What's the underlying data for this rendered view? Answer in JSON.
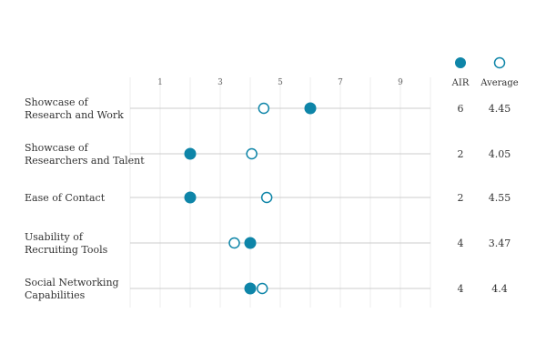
{
  "chart_data": {
    "type": "dot-plot",
    "x_ticks": [
      1,
      3,
      5,
      7,
      9
    ],
    "xlim": [
      0,
      10
    ],
    "grid": true,
    "legend_position": "top-right",
    "categories": [
      [
        "Showcase of",
        "Research and Work"
      ],
      [
        "Showcase of",
        "Researchers and Talent"
      ],
      [
        "Ease of Contact"
      ],
      [
        "Usability of",
        "Recruiting Tools"
      ],
      [
        "Social Networking",
        "Capabilities"
      ]
    ],
    "series": [
      {
        "name": "AIR",
        "style": "filled",
        "values": [
          6,
          2,
          2,
          4,
          4
        ],
        "labels": [
          "6",
          "2",
          "2",
          "4",
          "4"
        ]
      },
      {
        "name": "Average",
        "style": "hollow",
        "values": [
          4.45,
          4.05,
          4.55,
          3.47,
          4.4
        ],
        "labels": [
          "4.45",
          "4.05",
          "4.55",
          "3.47",
          "4.4"
        ]
      }
    ],
    "colors": {
      "dot": "#0e85a8",
      "row_line": "#cccccc",
      "grid": "#ececec",
      "text": "#333333"
    }
  }
}
